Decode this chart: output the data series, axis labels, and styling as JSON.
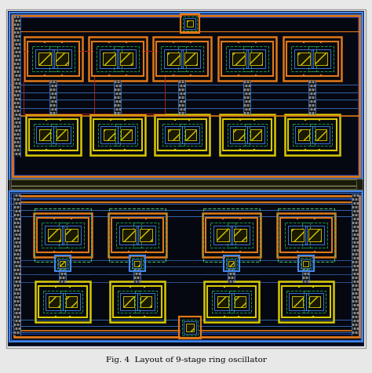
{
  "bg": "#050810",
  "chip_bg": "#080c1a",
  "denim_bg": "#0d1530",
  "title": "Fig. 4  Layout of 9-stage ring oscillator",
  "title_fontsize": 7.5,
  "figsize": [
    4.74,
    4.76
  ],
  "dpi": 100,
  "orange": "#e07818",
  "yellow": "#d8c800",
  "blue_outer": "#2244aa",
  "blue_mid": "#3366cc",
  "blue_light": "#4488ee",
  "blue_inner": "#1133aa",
  "green": "#229944",
  "green2": "#44bb66",
  "red_border": "#aa2222",
  "white": "#cccccc",
  "gray_hatch": "#aaaaaa",
  "via_bg": "#1a1a1a",
  "bus_color": "#333322",
  "bus_edge": "#888866"
}
